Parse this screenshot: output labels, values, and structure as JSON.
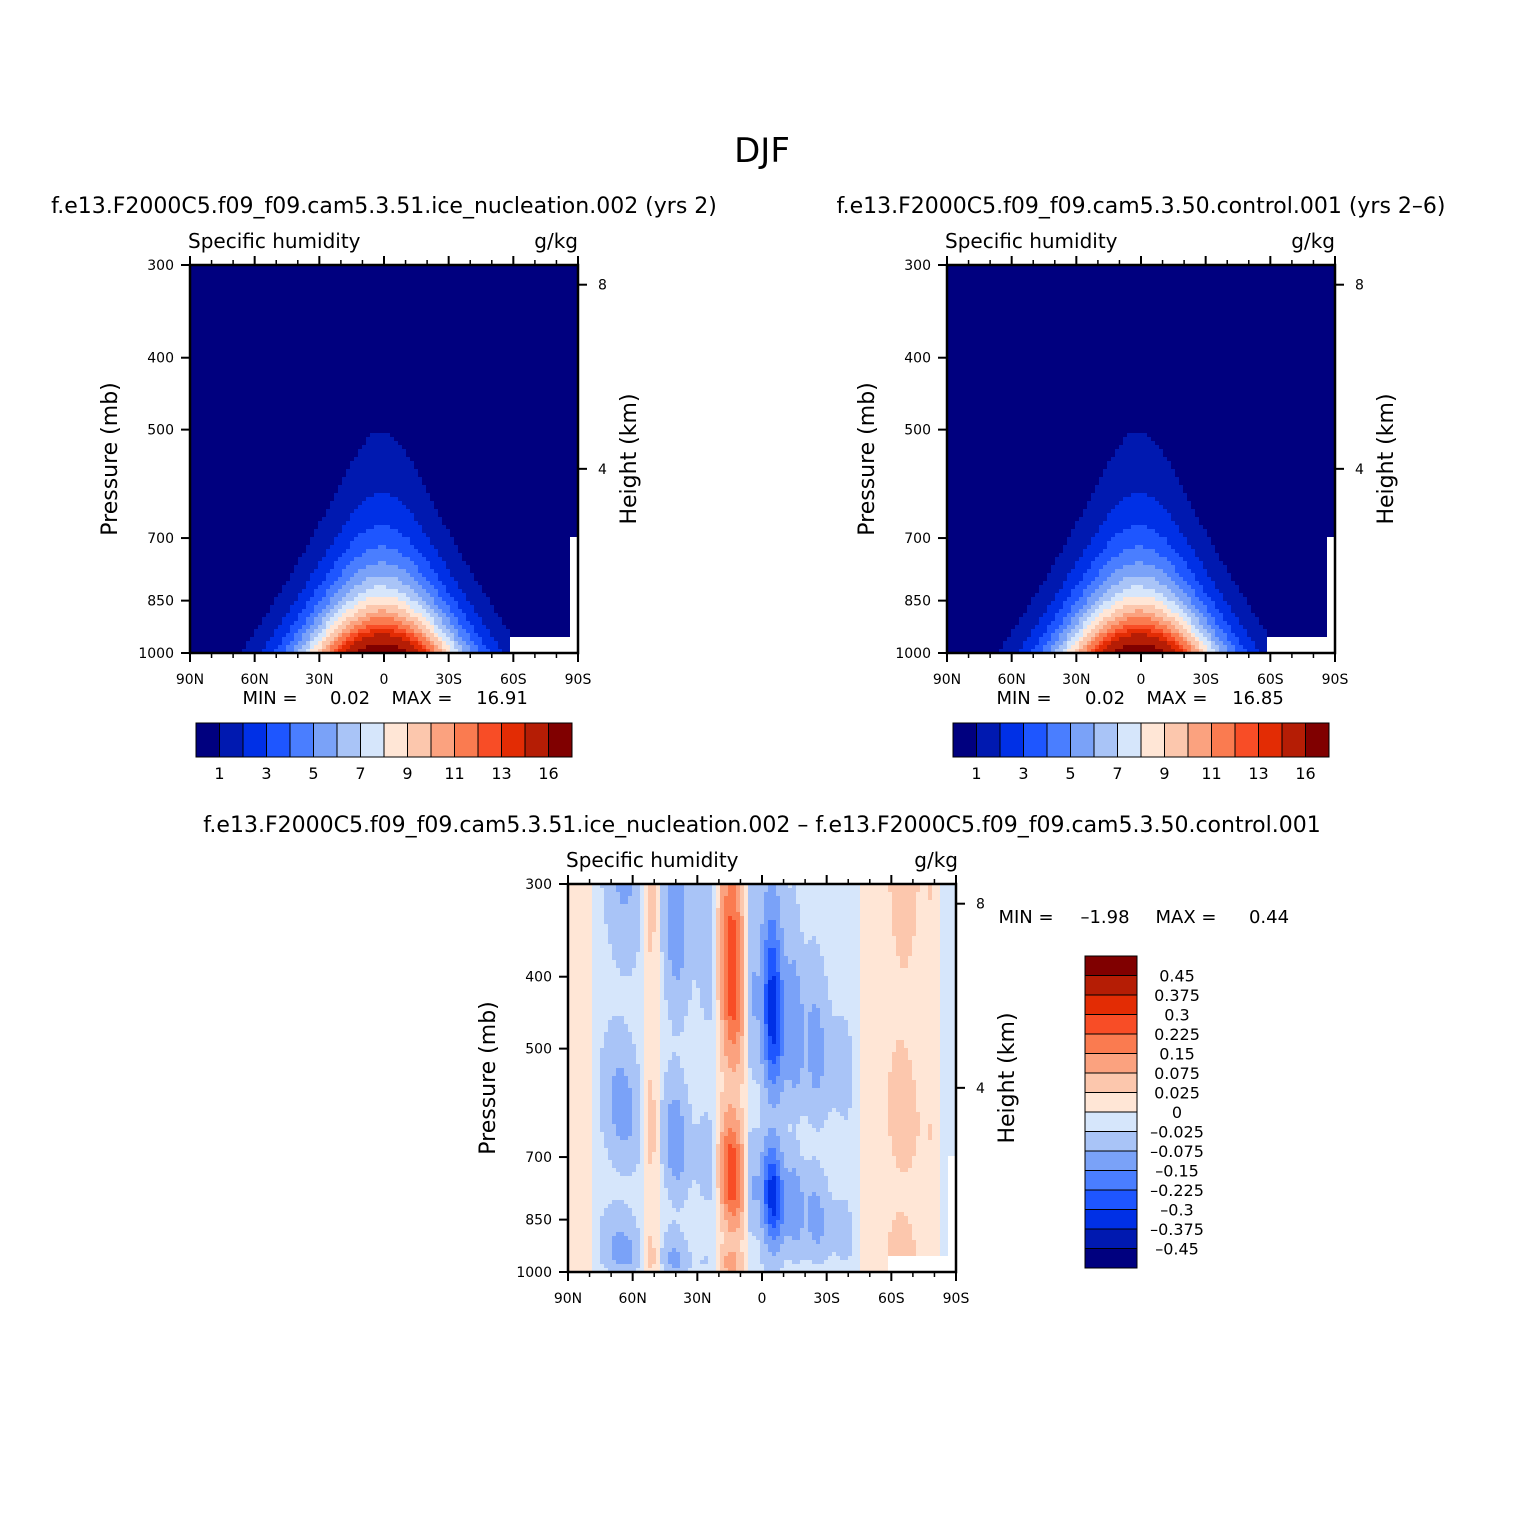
{
  "title": "DJF",
  "colors": {
    "abs_levels": [
      "#00007f",
      "#0019b0",
      "#0030e6",
      "#1e56ff",
      "#4a7eff",
      "#7aa2f8",
      "#a9c4f7",
      "#d6e6fb",
      "#ffe6d6",
      "#fcc7ad",
      "#fba27f",
      "#fa7b50",
      "#f84d26",
      "#e32c04",
      "#b51d05",
      "#800000"
    ],
    "diff_levels": [
      "#800000",
      "#b51d05",
      "#e32c04",
      "#f84d26",
      "#fa7b50",
      "#fba27f",
      "#fcc7ad",
      "#ffe6d6",
      "#d6e6fb",
      "#a9c4f7",
      "#7aa2f8",
      "#4a7eff",
      "#1e56ff",
      "#0030e6",
      "#0019b0",
      "#00007f"
    ]
  },
  "chart_data": [
    {
      "id": "panel-ice",
      "type": "contour",
      "run_title": "f.e13.F2000C5.f09_f09.cam5.3.51.ice_nucleation.002 (yrs 2)",
      "left_title": "Specific humidity",
      "units": "g/kg",
      "xlabel": "",
      "ylabel": "Pressure (mb)",
      "y2label": "Height (km)",
      "x_ticks": [
        "90N",
        "60N",
        "30N",
        "0",
        "30S",
        "60S",
        "90S"
      ],
      "x_values": [
        90,
        60,
        30,
        0,
        -30,
        -60,
        -90
      ],
      "y_ticks": [
        "300",
        "400",
        "500",
        "700",
        "850",
        "1000"
      ],
      "y_values": [
        300,
        400,
        500,
        700,
        850,
        1000
      ],
      "y2_ticks": [
        "8",
        "4"
      ],
      "y2_values": [
        8,
        4
      ],
      "min_label": "MIN =",
      "min_value": "0.02",
      "max_label": "MAX =",
      "max_value": "16.91",
      "colorbar_labels": [
        "1",
        "3",
        "5",
        "7",
        "9",
        "11",
        "13",
        "16"
      ],
      "levels": [
        0.5,
        1,
        2,
        3,
        4,
        5,
        6,
        7,
        8,
        9,
        10,
        11,
        12,
        13,
        14,
        16
      ],
      "peak_lat": 1,
      "width_scale": 1.0
    },
    {
      "id": "panel-control",
      "type": "contour",
      "run_title": "f.e13.F2000C5.f09_f09.cam5.3.50.control.001 (yrs 2–6)",
      "left_title": "Specific humidity",
      "units": "g/kg",
      "xlabel": "",
      "ylabel": "Pressure (mb)",
      "y2label": "Height (km)",
      "x_ticks": [
        "90N",
        "60N",
        "30N",
        "0",
        "30S",
        "60S",
        "90S"
      ],
      "x_values": [
        90,
        60,
        30,
        0,
        -30,
        -60,
        -90
      ],
      "y_ticks": [
        "300",
        "400",
        "500",
        "700",
        "850",
        "1000"
      ],
      "y_values": [
        300,
        400,
        500,
        700,
        850,
        1000
      ],
      "y2_ticks": [
        "8",
        "4"
      ],
      "y2_values": [
        8,
        4
      ],
      "min_label": "MIN =",
      "min_value": "0.02",
      "max_label": "MAX =",
      "max_value": "16.85",
      "colorbar_labels": [
        "1",
        "3",
        "5",
        "7",
        "9",
        "11",
        "13",
        "16"
      ],
      "levels": [
        0.5,
        1,
        2,
        3,
        4,
        5,
        6,
        7,
        8,
        9,
        10,
        11,
        12,
        13,
        14,
        16
      ],
      "peak_lat": 1,
      "width_scale": 1.0
    },
    {
      "id": "panel-diff",
      "type": "contour",
      "run_title": "f.e13.F2000C5.f09_f09.cam5.3.51.ice_nucleation.002 – f.e13.F2000C5.f09_f09.cam5.3.50.control.001",
      "left_title": "Specific humidity",
      "units": "g/kg",
      "xlabel": "",
      "ylabel": "Pressure (mb)",
      "y2label": "Height (km)",
      "x_ticks": [
        "90N",
        "60N",
        "30N",
        "0",
        "30S",
        "60S",
        "90S"
      ],
      "x_values": [
        90,
        60,
        30,
        0,
        -30,
        -60,
        -90
      ],
      "y_ticks": [
        "300",
        "400",
        "500",
        "700",
        "850",
        "1000"
      ],
      "y_values": [
        300,
        400,
        500,
        700,
        850,
        1000
      ],
      "y2_ticks": [
        "8",
        "4"
      ],
      "y2_values": [
        8,
        4
      ],
      "min_label": "MIN =",
      "min_value": "–1.98",
      "max_label": "MAX =",
      "max_value": "0.44",
      "colorbar_labels": [
        "0.45",
        "0.375",
        "0.3",
        "0.225",
        "0.15",
        "0.075",
        "0.025",
        "0",
        "–0.025",
        "–0.075",
        "–0.15",
        "–0.225",
        "–0.3",
        "–0.375",
        "–0.45"
      ],
      "levels": [
        0.45,
        0.375,
        0.3,
        0.225,
        0.15,
        0.075,
        0.025,
        0,
        -0.025,
        -0.075,
        -0.15,
        -0.225,
        -0.3,
        -0.375,
        -0.45
      ],
      "bands": [
        {
          "lat_center": 85,
          "half_width": 10,
          "value": 0.02
        },
        {
          "lat_center": 65,
          "half_width": 10,
          "value": -0.1
        },
        {
          "lat_center": 52,
          "half_width": 4,
          "value": 0.06
        },
        {
          "lat_center": 40,
          "half_width": 6,
          "value": -0.12
        },
        {
          "lat_center": 25,
          "half_width": 6,
          "value": -0.05
        },
        {
          "lat_center": 14,
          "half_width": 5,
          "value": 0.3
        },
        {
          "lat_center": 5,
          "half_width": 3,
          "value": -0.08
        },
        {
          "lat_center": -5,
          "half_width": 5,
          "value": -0.35
        },
        {
          "lat_center": -15,
          "half_width": 4,
          "value": -0.12
        },
        {
          "lat_center": -25,
          "half_width": 6,
          "value": -0.1
        },
        {
          "lat_center": -38,
          "half_width": 6,
          "value": -0.04
        },
        {
          "lat_center": -52,
          "half_width": 5,
          "value": 0.02
        },
        {
          "lat_center": -65,
          "half_width": 6,
          "value": 0.07
        },
        {
          "lat_center": -78,
          "half_width": 6,
          "value": 0.025
        },
        {
          "lat_center": -86,
          "half_width": 4,
          "value": -0.02
        }
      ]
    }
  ]
}
